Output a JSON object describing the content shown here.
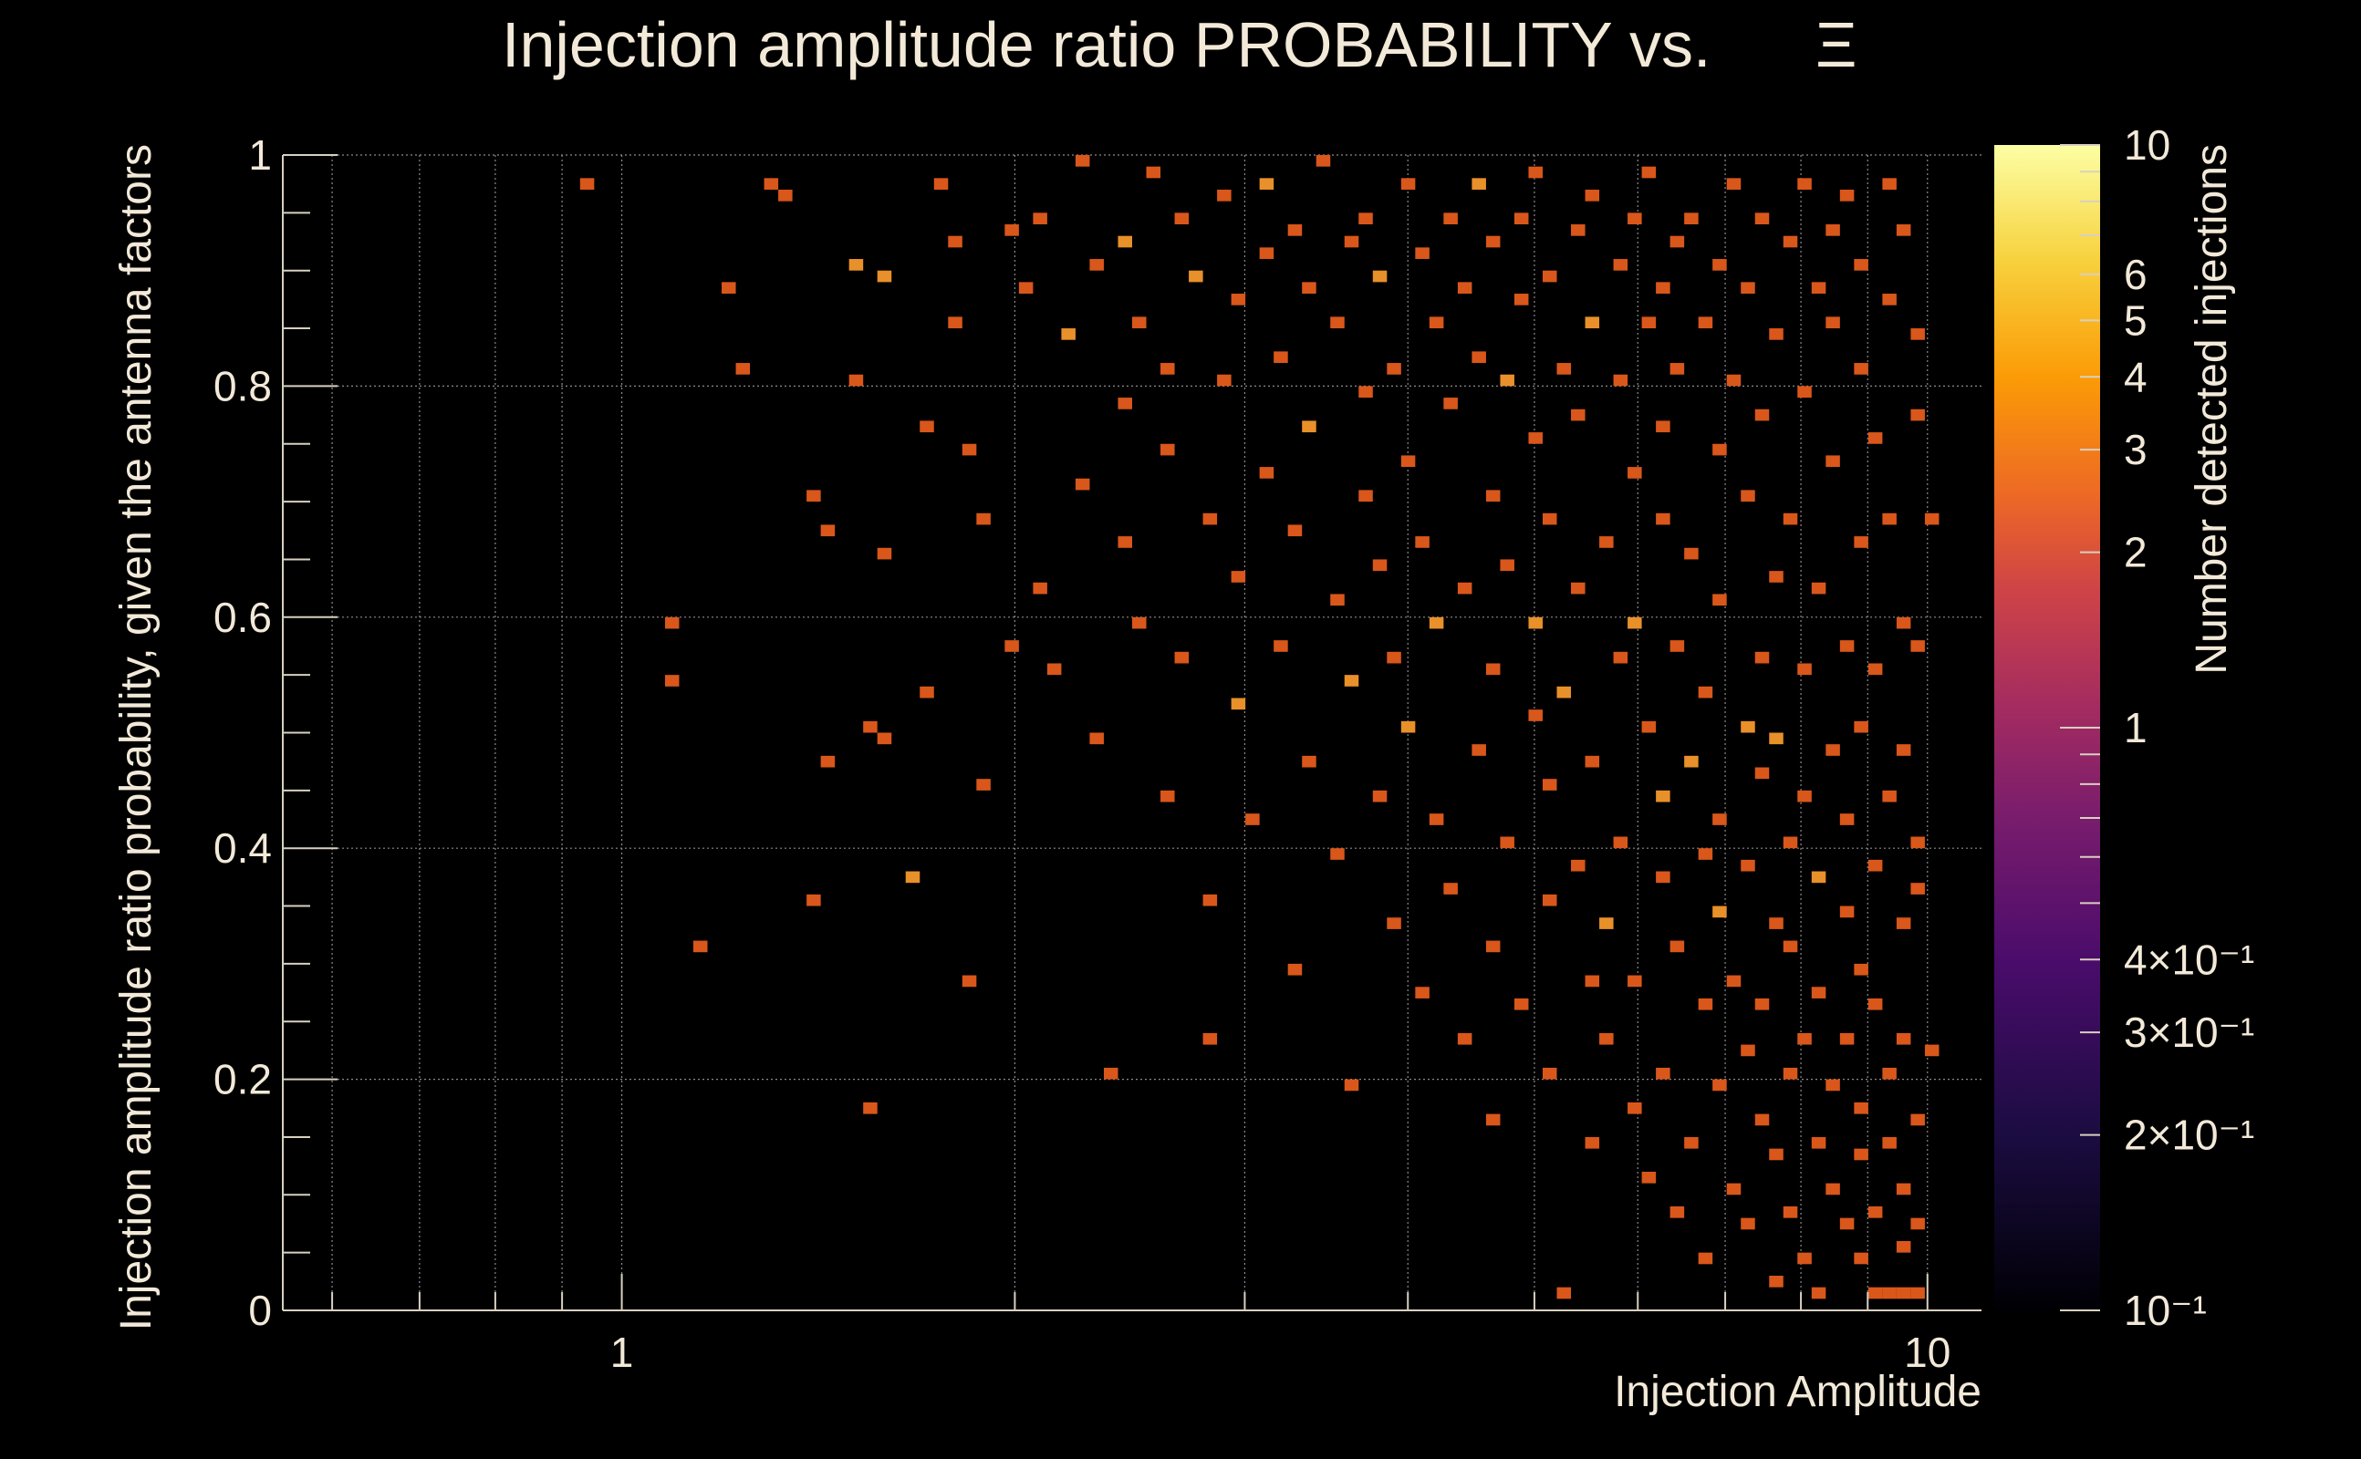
{
  "chart_data": {
    "type": "heatmap",
    "title": "Injection amplitude ratio PROBABILITY vs.",
    "title_symbol": "Ξ",
    "xlabel": "Injection Amplitude",
    "ylabel": "Injection amplitude ratio probability, given the antenna factors",
    "colorbar_label": "Number detected injections",
    "x_scale": "log",
    "xlim": [
      0.55,
      11.0
    ],
    "ylim": [
      0,
      1
    ],
    "x_ticks": [
      {
        "value": 1,
        "label": "1"
      },
      {
        "value": 10,
        "label": "10"
      }
    ],
    "y_ticks": [
      {
        "value": 0,
        "label": "0"
      },
      {
        "value": 0.2,
        "label": "0.2"
      },
      {
        "value": 0.4,
        "label": "0.4"
      },
      {
        "value": 0.6,
        "label": "0.6"
      },
      {
        "value": 0.8,
        "label": "0.8"
      },
      {
        "value": 1,
        "label": "1"
      }
    ],
    "colorbar_scale": "log",
    "colorbar_range": [
      0.1,
      10
    ],
    "colorbar_ticks": [
      {
        "value": 10,
        "label": "10"
      },
      {
        "value": 6,
        "label": "6"
      },
      {
        "value": 5,
        "label": "5"
      },
      {
        "value": 4,
        "label": "4"
      },
      {
        "value": 3,
        "label": "3"
      },
      {
        "value": 2,
        "label": "2"
      },
      {
        "value": 1,
        "label": "1"
      },
      {
        "value": 0.4,
        "label": "4×10⁻¹"
      },
      {
        "value": 0.3,
        "label": "3×10⁻¹"
      },
      {
        "value": 0.2,
        "label": "2×10⁻¹"
      },
      {
        "value": 0.1,
        "label": "10⁻¹"
      }
    ],
    "grid": true,
    "palette": "inferno",
    "colors": {
      "background": "#000000",
      "count_1": "#d9571a",
      "count_2": "#e8902a",
      "count_3": "#eeb04a"
    },
    "bins": {
      "x_bins": 120,
      "y_bins": 100,
      "cells": [
        [
          0.95,
          0.97,
          1
        ],
        [
          1.1,
          0.59,
          1
        ],
        [
          1.1,
          0.54,
          1
        ],
        [
          1.15,
          0.31,
          1
        ],
        [
          1.2,
          0.88,
          1
        ],
        [
          1.25,
          0.82,
          1
        ],
        [
          1.3,
          0.97,
          1
        ],
        [
          1.35,
          0.96,
          1
        ],
        [
          1.4,
          0.7,
          1
        ],
        [
          1.4,
          0.35,
          1
        ],
        [
          1.45,
          0.67,
          1
        ],
        [
          1.45,
          0.47,
          1
        ],
        [
          1.5,
          0.9,
          2
        ],
        [
          1.5,
          0.8,
          1
        ],
        [
          1.55,
          0.18,
          1
        ],
        [
          1.55,
          0.5,
          1
        ],
        [
          1.6,
          0.89,
          2
        ],
        [
          1.6,
          0.65,
          1
        ],
        [
          1.6,
          0.49,
          1
        ],
        [
          1.65,
          0.37,
          2
        ],
        [
          1.7,
          0.76,
          1
        ],
        [
          1.7,
          0.53,
          1
        ],
        [
          1.75,
          0.97,
          1
        ],
        [
          1.8,
          0.92,
          1
        ],
        [
          1.8,
          0.85,
          1
        ],
        [
          1.85,
          0.74,
          1
        ],
        [
          1.85,
          0.29,
          1
        ],
        [
          1.9,
          0.68,
          1
        ],
        [
          1.9,
          0.45,
          1
        ],
        [
          2.0,
          0.93,
          1
        ],
        [
          2.0,
          0.58,
          1
        ],
        [
          2.05,
          0.88,
          1
        ],
        [
          2.1,
          0.95,
          1
        ],
        [
          2.1,
          0.62,
          1
        ],
        [
          2.15,
          0.55,
          1
        ],
        [
          2.2,
          0.84,
          2
        ],
        [
          2.25,
          0.99,
          1
        ],
        [
          2.25,
          0.71,
          1
        ],
        [
          2.3,
          0.9,
          1
        ],
        [
          2.3,
          0.49,
          1
        ],
        [
          2.35,
          0.2,
          1
        ],
        [
          2.4,
          0.78,
          1
        ],
        [
          2.4,
          0.66,
          1
        ],
        [
          2.45,
          0.92,
          2
        ],
        [
          2.5,
          0.86,
          1
        ],
        [
          2.5,
          0.6,
          1
        ],
        [
          2.55,
          0.98,
          1
        ],
        [
          2.6,
          0.81,
          1
        ],
        [
          2.6,
          0.44,
          1
        ],
        [
          2.65,
          0.74,
          1
        ],
        [
          2.7,
          0.94,
          1
        ],
        [
          2.7,
          0.57,
          1
        ],
        [
          2.75,
          0.89,
          2
        ],
        [
          2.8,
          0.69,
          1
        ],
        [
          2.8,
          0.35,
          1
        ],
        [
          2.85,
          0.24,
          1
        ],
        [
          2.9,
          0.96,
          1
        ],
        [
          2.9,
          0.8,
          1
        ],
        [
          2.95,
          0.63,
          1
        ],
        [
          3.0,
          0.87,
          1
        ],
        [
          3.0,
          0.52,
          2
        ],
        [
          3.05,
          0.42,
          1
        ],
        [
          3.1,
          0.91,
          1
        ],
        [
          3.1,
          0.72,
          1
        ],
        [
          3.15,
          0.97,
          2
        ],
        [
          3.2,
          0.83,
          1
        ],
        [
          3.2,
          0.58,
          1
        ],
        [
          3.25,
          0.3,
          1
        ],
        [
          3.3,
          0.93,
          1
        ],
        [
          3.3,
          0.67,
          1
        ],
        [
          3.35,
          0.47,
          1
        ],
        [
          3.4,
          0.88,
          1
        ],
        [
          3.4,
          0.76,
          2
        ],
        [
          3.45,
          0.99,
          1
        ],
        [
          3.5,
          0.61,
          1
        ],
        [
          3.5,
          0.39,
          1
        ],
        [
          3.55,
          0.85,
          1
        ],
        [
          3.6,
          0.92,
          1
        ],
        [
          3.6,
          0.54,
          2
        ],
        [
          3.65,
          0.19,
          1
        ],
        [
          3.7,
          0.79,
          1
        ],
        [
          3.7,
          0.7,
          1
        ],
        [
          3.75,
          0.95,
          1
        ],
        [
          3.8,
          0.64,
          1
        ],
        [
          3.8,
          0.44,
          1
        ],
        [
          3.85,
          0.89,
          2
        ],
        [
          3.9,
          0.82,
          1
        ],
        [
          3.9,
          0.33,
          1
        ],
        [
          3.95,
          0.57,
          1
        ],
        [
          4.0,
          0.97,
          1
        ],
        [
          4.0,
          0.73,
          1
        ],
        [
          4.05,
          0.5,
          2
        ],
        [
          4.1,
          0.91,
          1
        ],
        [
          4.1,
          0.27,
          1
        ],
        [
          4.15,
          0.66,
          1
        ],
        [
          4.2,
          0.86,
          1
        ],
        [
          4.2,
          0.42,
          1
        ],
        [
          4.25,
          0.59,
          2
        ],
        [
          4.3,
          0.94,
          1
        ],
        [
          4.3,
          0.78,
          1
        ],
        [
          4.35,
          0.36,
          1
        ],
        [
          4.4,
          0.88,
          1
        ],
        [
          4.4,
          0.23,
          1
        ],
        [
          4.45,
          0.62,
          1
        ],
        [
          4.5,
          0.97,
          2
        ],
        [
          4.5,
          0.48,
          1
        ],
        [
          4.55,
          0.83,
          1
        ],
        [
          4.6,
          0.7,
          1
        ],
        [
          4.6,
          0.31,
          1
        ],
        [
          4.65,
          0.92,
          1
        ],
        [
          4.7,
          0.55,
          1
        ],
        [
          4.7,
          0.16,
          1
        ],
        [
          4.75,
          0.8,
          2
        ],
        [
          4.8,
          0.64,
          1
        ],
        [
          4.8,
          0.4,
          1
        ],
        [
          4.85,
          0.95,
          1
        ],
        [
          4.9,
          0.87,
          1
        ],
        [
          4.9,
          0.26,
          1
        ],
        [
          4.95,
          0.51,
          1
        ],
        [
          5.0,
          0.75,
          1
        ],
        [
          5.0,
          0.59,
          2
        ],
        [
          5.05,
          0.98,
          1
        ],
        [
          5.1,
          0.45,
          1
        ],
        [
          5.1,
          0.35,
          1
        ],
        [
          5.15,
          0.89,
          1
        ],
        [
          5.2,
          0.68,
          1
        ],
        [
          5.2,
          0.2,
          1
        ],
        [
          5.25,
          0.82,
          1
        ],
        [
          5.3,
          0.53,
          2
        ],
        [
          5.3,
          0.02,
          1
        ],
        [
          5.35,
          0.93,
          1
        ],
        [
          5.4,
          0.62,
          1
        ],
        [
          5.4,
          0.38,
          1
        ],
        [
          5.45,
          0.77,
          1
        ],
        [
          5.5,
          0.29,
          1
        ],
        [
          5.5,
          0.14,
          1
        ],
        [
          5.55,
          0.86,
          2
        ],
        [
          5.6,
          0.47,
          1
        ],
        [
          5.6,
          0.96,
          1
        ],
        [
          5.65,
          0.66,
          1
        ],
        [
          5.7,
          0.33,
          2
        ],
        [
          5.7,
          0.23,
          1
        ],
        [
          5.75,
          0.9,
          1
        ],
        [
          5.8,
          0.56,
          1
        ],
        [
          5.8,
          0.41,
          1
        ],
        [
          5.85,
          0.8,
          1
        ],
        [
          5.9,
          0.17,
          1
        ],
        [
          5.9,
          0.72,
          1
        ],
        [
          5.95,
          0.94,
          1
        ],
        [
          6.0,
          0.6,
          2
        ],
        [
          6.0,
          0.28,
          1
        ],
        [
          6.05,
          0.85,
          1
        ],
        [
          6.1,
          0.5,
          1
        ],
        [
          6.1,
          0.12,
          1
        ],
        [
          6.15,
          0.98,
          1
        ],
        [
          6.2,
          0.69,
          1
        ],
        [
          6.2,
          0.37,
          1
        ],
        [
          6.25,
          0.88,
          1
        ],
        [
          6.3,
          0.44,
          2
        ],
        [
          6.3,
          0.21,
          1
        ],
        [
          6.35,
          0.76,
          1
        ],
        [
          6.4,
          0.92,
          1
        ],
        [
          6.4,
          0.09,
          1
        ],
        [
          6.45,
          0.58,
          1
        ],
        [
          6.5,
          0.31,
          1
        ],
        [
          6.5,
          0.82,
          1
        ],
        [
          6.55,
          0.47,
          2
        ],
        [
          6.6,
          0.15,
          1
        ],
        [
          6.6,
          0.95,
          1
        ],
        [
          6.65,
          0.65,
          1
        ],
        [
          6.7,
          0.39,
          1
        ],
        [
          6.7,
          0.26,
          1
        ],
        [
          6.75,
          0.86,
          1
        ],
        [
          6.8,
          0.53,
          1
        ],
        [
          6.8,
          0.04,
          1
        ],
        [
          6.85,
          0.74,
          1
        ],
        [
          6.9,
          0.34,
          2
        ],
        [
          6.9,
          0.19,
          1
        ],
        [
          6.95,
          0.9,
          1
        ],
        [
          7.0,
          0.61,
          1
        ],
        [
          7.0,
          0.43,
          1
        ],
        [
          7.05,
          0.11,
          1
        ],
        [
          7.1,
          0.97,
          1
        ],
        [
          7.1,
          0.8,
          1
        ],
        [
          7.15,
          0.29,
          1
        ],
        [
          7.2,
          0.5,
          2
        ],
        [
          7.2,
          0.22,
          1
        ],
        [
          7.25,
          0.7,
          1
        ],
        [
          7.3,
          0.07,
          1
        ],
        [
          7.3,
          0.88,
          1
        ],
        [
          7.35,
          0.38,
          1
        ],
        [
          7.4,
          0.57,
          1
        ],
        [
          7.4,
          0.16,
          1
        ],
        [
          7.45,
          0.94,
          1
        ],
        [
          7.5,
          0.46,
          1
        ],
        [
          7.5,
          0.26,
          1
        ],
        [
          7.55,
          0.77,
          1
        ],
        [
          7.6,
          0.03,
          1
        ],
        [
          7.6,
          0.63,
          1
        ],
        [
          7.65,
          0.33,
          1
        ],
        [
          7.7,
          0.84,
          1
        ],
        [
          7.7,
          0.13,
          1
        ],
        [
          7.75,
          0.49,
          2
        ],
        [
          7.8,
          0.2,
          1
        ],
        [
          7.8,
          0.92,
          1
        ],
        [
          7.85,
          0.41,
          1
        ],
        [
          7.9,
          0.68,
          1
        ],
        [
          7.9,
          0.09,
          1
        ],
        [
          7.95,
          0.31,
          1
        ],
        [
          8.0,
          0.55,
          1
        ],
        [
          8.0,
          0.97,
          1
        ],
        [
          8.05,
          0.24,
          1
        ],
        [
          8.1,
          0.79,
          1
        ],
        [
          8.1,
          0.05,
          1
        ],
        [
          8.15,
          0.44,
          1
        ],
        [
          8.2,
          0.15,
          1
        ],
        [
          8.2,
          0.88,
          1
        ],
        [
          8.25,
          0.37,
          2
        ],
        [
          8.3,
          0.62,
          1
        ],
        [
          8.3,
          0.02,
          1
        ],
        [
          8.35,
          0.27,
          1
        ],
        [
          8.4,
          0.93,
          1
        ],
        [
          8.4,
          0.11,
          1
        ],
        [
          8.45,
          0.48,
          1
        ],
        [
          8.5,
          0.73,
          1
        ],
        [
          8.5,
          0.19,
          1
        ],
        [
          8.55,
          0.85,
          1
        ],
        [
          8.6,
          0.34,
          1
        ],
        [
          8.6,
          0.07,
          1
        ],
        [
          8.65,
          0.58,
          1
        ],
        [
          8.7,
          0.96,
          1
        ],
        [
          8.7,
          0.23,
          1
        ],
        [
          8.75,
          0.42,
          1
        ],
        [
          8.8,
          0.13,
          1
        ],
        [
          8.8,
          0.81,
          1
        ],
        [
          8.85,
          0.04,
          1
        ],
        [
          8.9,
          0.66,
          1
        ],
        [
          8.9,
          0.3,
          1
        ],
        [
          8.95,
          0.5,
          1
        ],
        [
          9.0,
          0.17,
          1
        ],
        [
          9.0,
          0.9,
          1
        ],
        [
          9.05,
          0.02,
          1
        ],
        [
          9.1,
          0.38,
          1
        ],
        [
          9.1,
          0.75,
          1
        ],
        [
          9.15,
          0.09,
          1
        ],
        [
          9.2,
          0.55,
          1
        ],
        [
          9.2,
          0.26,
          1
        ],
        [
          9.25,
          0.97,
          1
        ],
        [
          9.3,
          0.14,
          1
        ],
        [
          9.3,
          0.44,
          1
        ],
        [
          9.35,
          0.01,
          1
        ],
        [
          9.4,
          0.68,
          1
        ],
        [
          9.4,
          0.21,
          1
        ],
        [
          9.45,
          0.87,
          1
        ],
        [
          9.5,
          0.33,
          1
        ],
        [
          9.5,
          0.06,
          1
        ],
        [
          9.55,
          0.6,
          1
        ],
        [
          9.6,
          0.11,
          1
        ],
        [
          9.6,
          0.48,
          1
        ],
        [
          9.65,
          0.93,
          1
        ],
        [
          9.7,
          0.24,
          1
        ],
        [
          9.7,
          0.02,
          1
        ],
        [
          9.75,
          0.77,
          1
        ],
        [
          9.8,
          0.36,
          1
        ],
        [
          9.8,
          0.16,
          1
        ],
        [
          9.85,
          0.58,
          1
        ],
        [
          9.9,
          0.02,
          1
        ],
        [
          9.9,
          0.84,
          1
        ],
        [
          9.95,
          0.4,
          1
        ],
        [
          9.95,
          0.08,
          1
        ],
        [
          10.0,
          0.69,
          1
        ],
        [
          10.0,
          0.22,
          1
        ]
      ]
    }
  }
}
